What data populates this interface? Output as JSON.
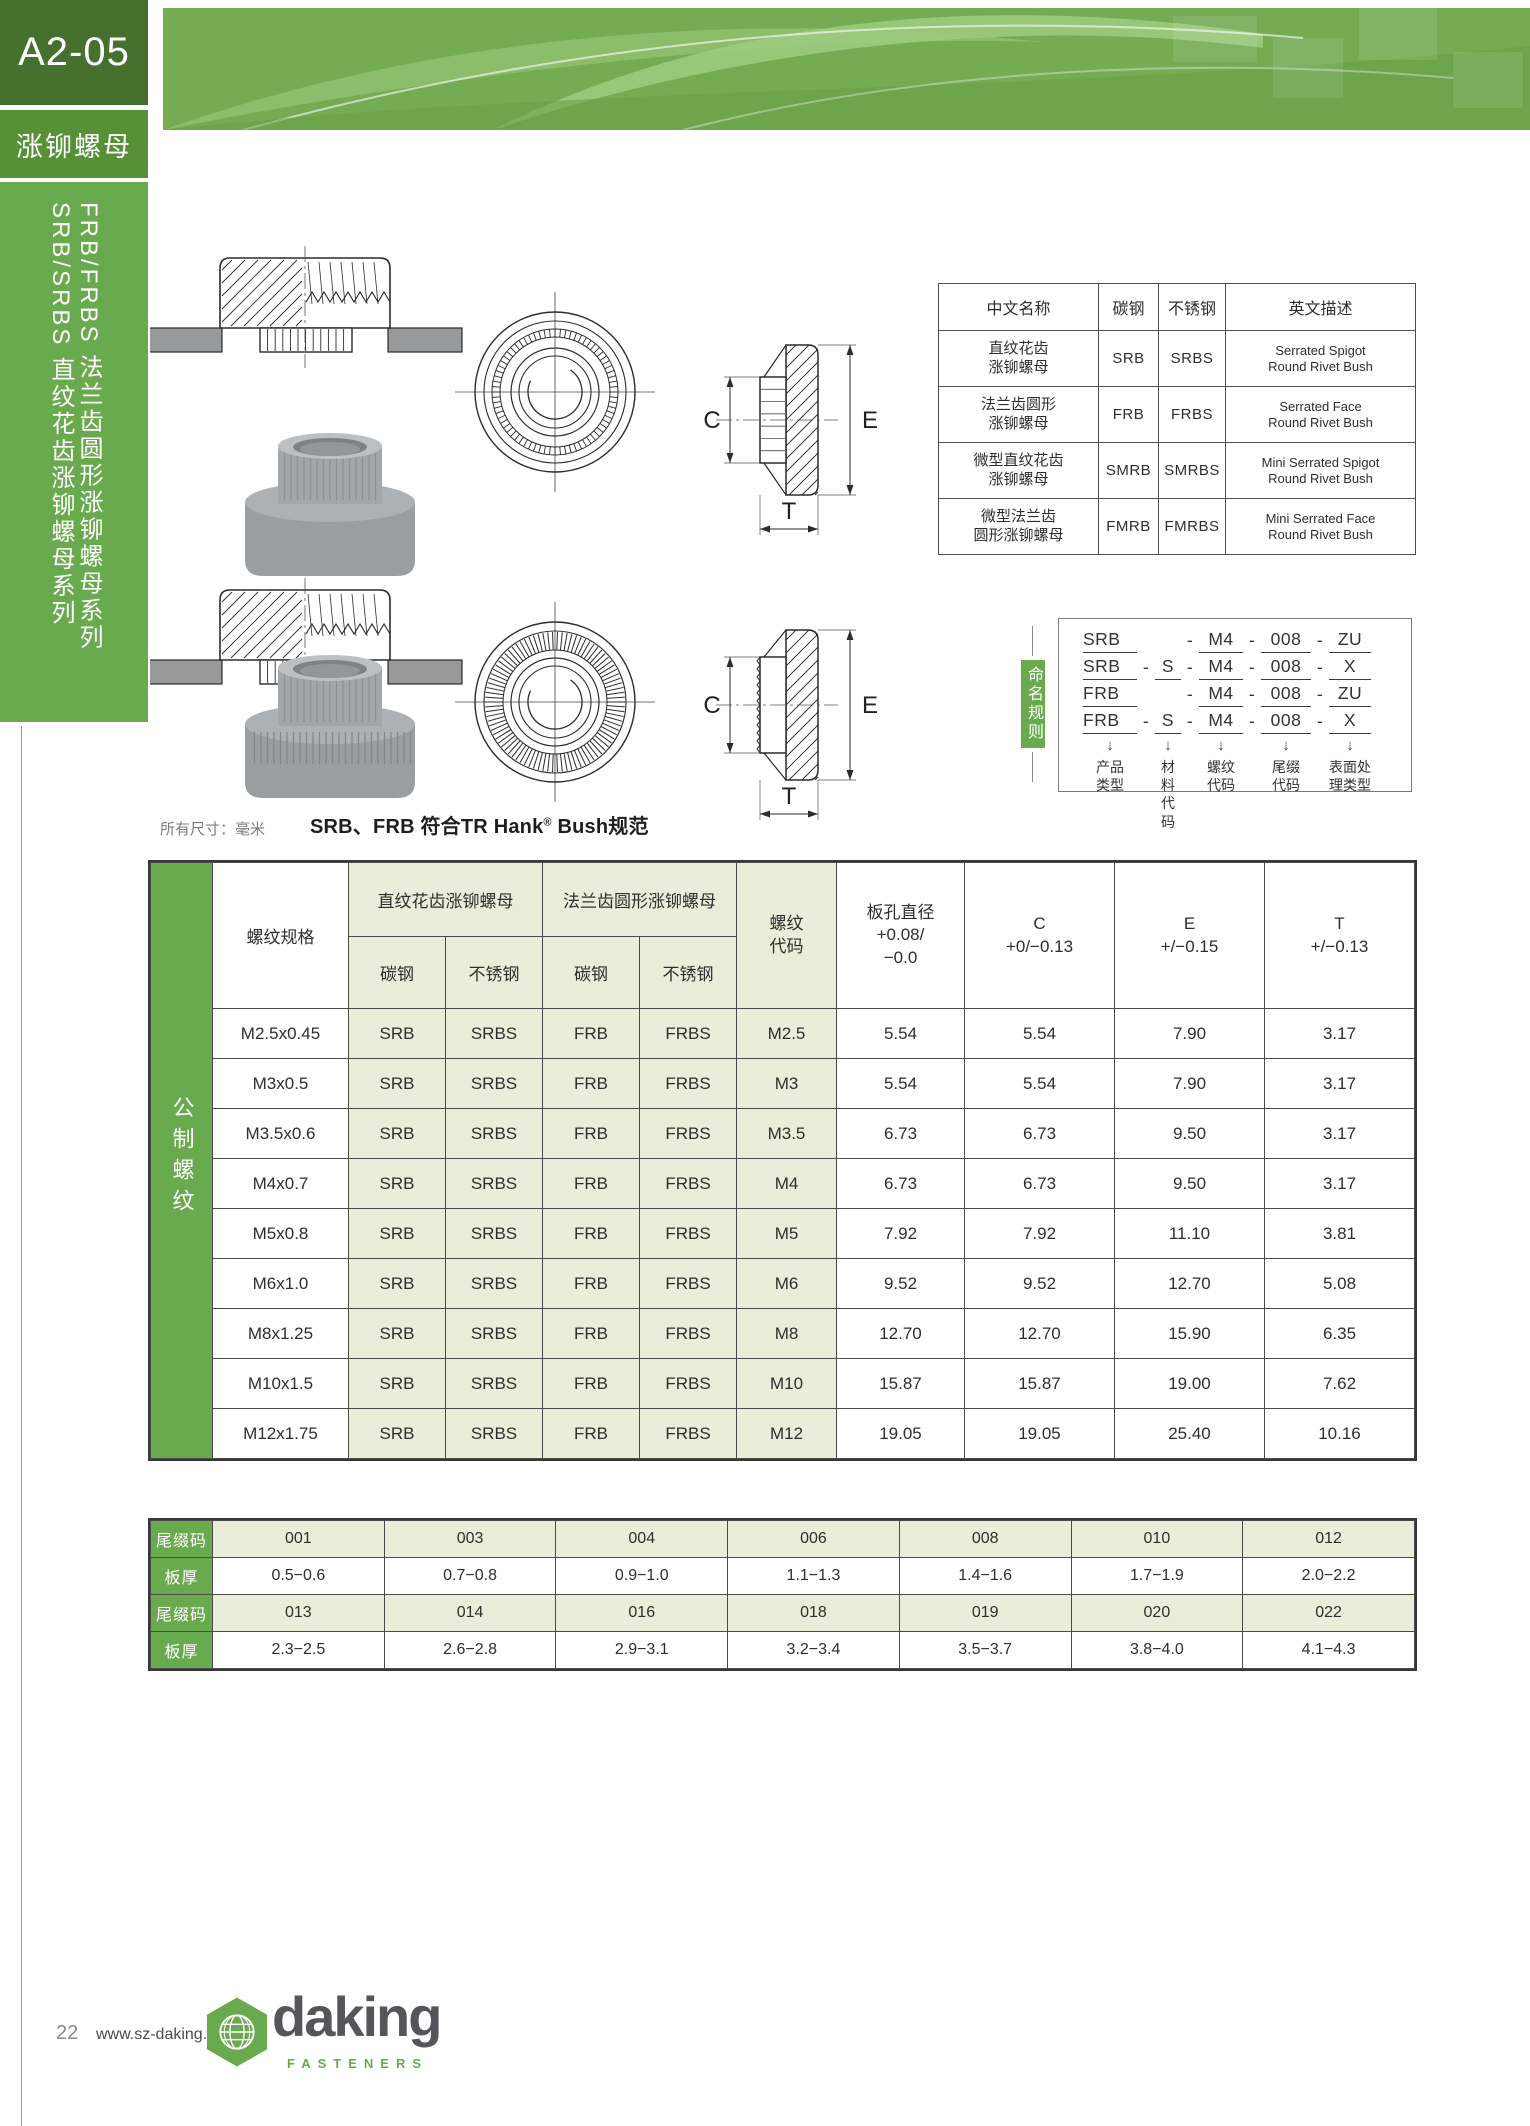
{
  "header": {
    "page_code": "A2-05",
    "category_tab": "涨铆螺母",
    "series_title_line1": "FRB/FRBS 法兰齿圆形涨铆螺母系列",
    "series_title_line2": "SRB/SRBS 直纹花齿涨铆螺母系列"
  },
  "colors": {
    "dark_green": "#45702e",
    "mid_green": "#569138",
    "accent_green": "#6aaa4e",
    "banner_green": "#74ab53",
    "cell_green": "#e9edd9",
    "plate_gray": "#97999b",
    "logo_gray": "#54565a"
  },
  "product_table": {
    "headers": [
      "中文名称",
      "碳钢",
      "不锈钢",
      "英文描述"
    ],
    "rows": [
      {
        "name_cn": "直纹花齿\n涨铆螺母",
        "carbon": "SRB",
        "stainless": "SRBS",
        "name_en": "Serrated Spigot\nRound Rivet Bush"
      },
      {
        "name_cn": "法兰齿圆形\n涨铆螺母",
        "carbon": "FRB",
        "stainless": "FRBS",
        "name_en": "Serrated Face\nRound Rivet Bush"
      },
      {
        "name_cn": "微型直纹花齿\n涨铆螺母",
        "carbon": "SMRB",
        "stainless": "SMRBS",
        "name_en": "Mini Serrated Spigot\nRound Rivet Bush"
      },
      {
        "name_cn": "微型法兰齿\n圆形涨铆螺母",
        "carbon": "FMRB",
        "stainless": "FMRBS",
        "name_en": "Mini Serrated Face\nRound Rivet Bush"
      }
    ]
  },
  "naming": {
    "label": "命名规则",
    "rows": [
      {
        "product": "SRB",
        "material": "",
        "thread": "M4",
        "suffix": "008",
        "surface": "ZU"
      },
      {
        "product": "SRB",
        "material": "S",
        "thread": "M4",
        "suffix": "008",
        "surface": "X"
      },
      {
        "product": "FRB",
        "material": "",
        "thread": "M4",
        "suffix": "008",
        "surface": "ZU"
      },
      {
        "product": "FRB",
        "material": "S",
        "thread": "M4",
        "suffix": "008",
        "surface": "X"
      }
    ],
    "arrow": "↓",
    "legend": [
      "产品\n类型",
      "材料\n代码",
      "螺纹\n代码",
      "尾缀\n代码",
      "表面处\n理类型"
    ]
  },
  "dims_note": {
    "left": "所有尺寸：毫米",
    "right_prefix": "SRB、FRB 符合TR Hank",
    "sup": "®",
    "right_suffix": " Bush规范"
  },
  "spec_table": {
    "side_label": "公制螺纹",
    "col_thread_spec": "螺纹规格",
    "group_serrated": "直纹花齿涨铆螺母",
    "group_flange": "法兰齿圆形涨铆螺母",
    "sub_carbon": "碳钢",
    "sub_stainless": "不锈钢",
    "col_thread_code": "螺纹\n代码",
    "col_hole": "板孔直径\n+0.08/\n−0.0",
    "col_c": "C\n+0/−0.13",
    "col_e": "E\n+/−0.15",
    "col_t": "T\n+/−0.13",
    "rows": [
      [
        "M2.5x0.45",
        "SRB",
        "SRBS",
        "FRB",
        "FRBS",
        "M2.5",
        "5.54",
        "5.54",
        "7.90",
        "3.17"
      ],
      [
        "M3x0.5",
        "SRB",
        "SRBS",
        "FRB",
        "FRBS",
        "M3",
        "5.54",
        "5.54",
        "7.90",
        "3.17"
      ],
      [
        "M3.5x0.6",
        "SRB",
        "SRBS",
        "FRB",
        "FRBS",
        "M3.5",
        "6.73",
        "6.73",
        "9.50",
        "3.17"
      ],
      [
        "M4x0.7",
        "SRB",
        "SRBS",
        "FRB",
        "FRBS",
        "M4",
        "6.73",
        "6.73",
        "9.50",
        "3.17"
      ],
      [
        "M5x0.8",
        "SRB",
        "SRBS",
        "FRB",
        "FRBS",
        "M5",
        "7.92",
        "7.92",
        "11.10",
        "3.81"
      ],
      [
        "M6x1.0",
        "SRB",
        "SRBS",
        "FRB",
        "FRBS",
        "M6",
        "9.52",
        "9.52",
        "12.70",
        "5.08"
      ],
      [
        "M8x1.25",
        "SRB",
        "SRBS",
        "FRB",
        "FRBS",
        "M8",
        "12.70",
        "12.70",
        "15.90",
        "6.35"
      ],
      [
        "M10x1.5",
        "SRB",
        "SRBS",
        "FRB",
        "FRBS",
        "M10",
        "15.87",
        "15.87",
        "19.00",
        "7.62"
      ],
      [
        "M12x1.75",
        "SRB",
        "SRBS",
        "FRB",
        "FRBS",
        "M12",
        "19.05",
        "19.05",
        "25.40",
        "10.16"
      ]
    ]
  },
  "suffix_table": {
    "label_code": "尾缀码",
    "label_thickness": "板厚",
    "code_rows": [
      [
        "001",
        "003",
        "004",
        "006",
        "008",
        "010",
        "012"
      ],
      [
        "013",
        "014",
        "016",
        "018",
        "019",
        "020",
        "022"
      ]
    ],
    "thickness_rows": [
      [
        "0.5−0.6",
        "0.7−0.8",
        "0.9−1.0",
        "1.1−1.3",
        "1.4−1.6",
        "1.7−1.9",
        "2.0−2.2"
      ],
      [
        "2.3−2.5",
        "2.6−2.8",
        "2.9−3.1",
        "3.2−3.4",
        "3.5−3.7",
        "3.8−4.0",
        "4.1−4.3"
      ]
    ]
  },
  "drawings": {
    "dim_c": "C",
    "dim_e": "E",
    "dim_t": "T"
  },
  "footer": {
    "page_number": "22",
    "website": "www.sz-daking.com",
    "logo_text": "daking",
    "logo_sub": "FASTENERS"
  }
}
